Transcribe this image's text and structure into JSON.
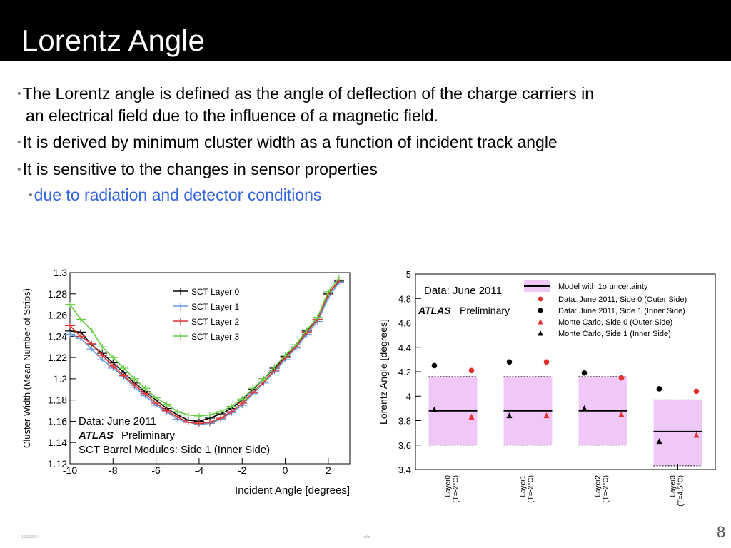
{
  "slide": {
    "title": "Lorentz Angle",
    "bullets": [
      {
        "lines": [
          "The Lorentz angle is defined as the angle of deflection of the charge carriers in",
          "an electrical field due to the influence of a magnetic field."
        ]
      },
      {
        "lines": [
          "It is derived by minimum cluster width as a function of incident track angle"
        ]
      },
      {
        "lines": [
          "It is sensitive to the changes in sensor properties"
        ]
      }
    ],
    "sub_bullet": "due to radiation and detector conditions",
    "footer_date": "10/20/2014",
    "footer_text": "hello",
    "page_number": "8",
    "colors": {
      "title_bar": "#000000",
      "sub_bullet": "#3366dd"
    }
  },
  "chart_data": [
    {
      "type": "scatter",
      "xlabel": "Incident Angle [degrees]",
      "ylabel": "Cluster Width (Mean Number of Strips)",
      "xlim": [
        -10,
        3
      ],
      "ylim": [
        1.12,
        1.3
      ],
      "xticks": [
        -10,
        -8,
        -6,
        -4,
        -2,
        0,
        2
      ],
      "yticks": [
        1.12,
        1.14,
        1.16,
        1.18,
        1.2,
        1.22,
        1.24,
        1.26,
        1.28,
        1.3
      ],
      "annotations": [
        "Data: June 2011",
        "ATLAS",
        "Preliminary",
        "SCT Barrel Modules: Side 1 (Inner Side)"
      ],
      "legend": "top-right",
      "series": [
        {
          "name": "SCT Layer 0",
          "color": "#000000",
          "x": [
            -10,
            -9.5,
            -9,
            -8.5,
            -8,
            -7.5,
            -7,
            -6.5,
            -6,
            -5.5,
            -5,
            -4.5,
            -4,
            -3.5,
            -3,
            -2.5,
            -2,
            -1.5,
            -1,
            -0.5,
            0,
            0.5,
            1,
            1.5,
            2,
            2.5
          ],
          "y": [
            1.245,
            1.244,
            1.232,
            1.224,
            1.215,
            1.206,
            1.196,
            1.188,
            1.18,
            1.172,
            1.166,
            1.161,
            1.16,
            1.163,
            1.167,
            1.172,
            1.18,
            1.19,
            1.2,
            1.21,
            1.221,
            1.232,
            1.245,
            1.256,
            1.28,
            1.292
          ]
        },
        {
          "name": "SCT Layer 1",
          "color": "#6699dd",
          "x": [
            -10,
            -9.5,
            -9,
            -8.5,
            -8,
            -7.5,
            -7,
            -6.5,
            -6,
            -5.5,
            -5,
            -4.5,
            -4,
            -3.5,
            -3,
            -2.5,
            -2,
            -1.5,
            -1,
            -0.5,
            0,
            0.5,
            1,
            1.5,
            2,
            2.5
          ],
          "y": [
            1.242,
            1.238,
            1.228,
            1.218,
            1.21,
            1.202,
            1.192,
            1.184,
            1.175,
            1.169,
            1.162,
            1.159,
            1.157,
            1.158,
            1.162,
            1.168,
            1.175,
            1.186,
            1.196,
            1.207,
            1.218,
            1.229,
            1.242,
            1.254,
            1.276,
            1.291
          ]
        },
        {
          "name": "SCT Layer 2",
          "color": "#dd3333",
          "x": [
            -10,
            -9.5,
            -9,
            -8.5,
            -8,
            -7.5,
            -7,
            -6.5,
            -6,
            -5.5,
            -5,
            -4.5,
            -4,
            -3.5,
            -3,
            -2.5,
            -2,
            -1.5,
            -1,
            -0.5,
            0,
            0.5,
            1,
            1.5,
            2,
            2.5
          ],
          "y": [
            1.25,
            1.24,
            1.233,
            1.222,
            1.212,
            1.203,
            1.194,
            1.186,
            1.177,
            1.17,
            1.164,
            1.159,
            1.158,
            1.159,
            1.163,
            1.169,
            1.177,
            1.187,
            1.197,
            1.208,
            1.22,
            1.23,
            1.244,
            1.256,
            1.279,
            1.293
          ]
        },
        {
          "name": "SCT Layer 3",
          "color": "#66cc44",
          "x": [
            -10,
            -9.5,
            -9,
            -8.5,
            -8,
            -7.5,
            -7,
            -6.5,
            -6,
            -5.5,
            -5,
            -4.5,
            -4,
            -3.5,
            -3,
            -2.5,
            -2,
            -1.5,
            -1,
            -0.5,
            0,
            0.5,
            1,
            1.5,
            2,
            2.5
          ],
          "y": [
            1.27,
            1.256,
            1.246,
            1.23,
            1.22,
            1.21,
            1.2,
            1.191,
            1.182,
            1.176,
            1.169,
            1.166,
            1.165,
            1.166,
            1.169,
            1.174,
            1.181,
            1.191,
            1.2,
            1.211,
            1.222,
            1.232,
            1.246,
            1.258,
            1.282,
            1.295
          ]
        }
      ]
    },
    {
      "type": "scatter",
      "ylabel": "Lorentz Angle [degrees]",
      "ylim": [
        3.4,
        5.0
      ],
      "yticks": [
        3.4,
        3.6,
        3.8,
        4.0,
        4.2,
        4.4,
        4.6,
        4.8,
        5.0
      ],
      "categories": [
        "Layer0 (T=-2°C)",
        "Layer1 (T=-2°C)",
        "Layer2 (T=-2°C)",
        "Layer3 (T=4.5°C)"
      ],
      "annotations": [
        "Data: June 2011",
        "ATLAS",
        "Preliminary"
      ],
      "legend": "top-right",
      "model": {
        "name": "Model with 1σ uncertainty",
        "color": "#f0c8f8",
        "central": [
          3.88,
          3.88,
          3.88,
          3.71
        ],
        "low": [
          3.6,
          3.6,
          3.6,
          3.43
        ],
        "high": [
          4.16,
          4.16,
          4.16,
          3.97
        ]
      },
      "series": [
        {
          "name": "Data: June 2011, Side 0 (Outer Side)",
          "marker": "circle",
          "color": "#e03030",
          "values": [
            4.21,
            4.28,
            4.15,
            4.04
          ]
        },
        {
          "name": "Data: June 2011, Side 1 (Inner Side)",
          "marker": "circle",
          "color": "#000000",
          "values": [
            4.25,
            4.28,
            4.19,
            4.06
          ]
        },
        {
          "name": "Monte Carlo, Side 0 (Outer Side)",
          "marker": "triangle",
          "color": "#e03030",
          "values": [
            3.83,
            3.84,
            3.85,
            3.68
          ]
        },
        {
          "name": "Monte Carlo, Side 1 (Inner Side)",
          "marker": "triangle",
          "color": "#000000",
          "values": [
            3.89,
            3.84,
            3.9,
            3.63
          ]
        }
      ]
    }
  ]
}
